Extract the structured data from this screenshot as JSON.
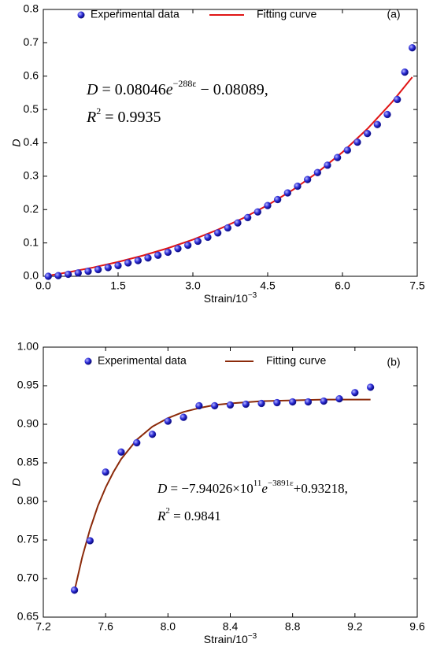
{
  "chart_data": [
    {
      "type": "scatter",
      "panel_label": "(a)",
      "x_label": [
        "Strain/10",
        "−3"
      ],
      "y_label": "D",
      "annotation": {
        "line1": [
          "D",
          " = 0.08046",
          "e",
          "−288ε",
          " − 0.08089,"
        ],
        "line2": [
          "R",
          "2",
          " = 0.9935"
        ]
      },
      "xlim": [
        0,
        7.5
      ],
      "ylim": [
        0,
        0.8
      ],
      "xticks": [
        {
          "value": 0,
          "label": "0.0"
        },
        1.5,
        {
          "value": 3,
          "label": "3.0"
        },
        4.5,
        {
          "value": 6,
          "label": "6.0"
        },
        7.5
      ],
      "yticks": [
        {
          "value": 0,
          "label": "0.0"
        },
        0.1,
        0.2,
        0.3,
        0.4,
        0.5,
        0.6,
        0.7,
        0.8
      ],
      "legend": "top",
      "series": [
        {
          "name": "Experimental data",
          "type": "scatter",
          "color": "#2a2ad6",
          "x": [
            0.1,
            0.3,
            0.5,
            0.7,
            0.9,
            1.1,
            1.3,
            1.5,
            1.7,
            1.9,
            2.1,
            2.3,
            2.5,
            2.7,
            2.9,
            3.1,
            3.3,
            3.5,
            3.7,
            3.9,
            4.1,
            4.3,
            4.5,
            4.7,
            4.9,
            5.1,
            5.3,
            5.5,
            5.7,
            5.9,
            6.1,
            6.3,
            6.5,
            6.7,
            6.9,
            7.1,
            7.25,
            7.4
          ],
          "values": [
            0.0,
            0.002,
            0.006,
            0.01,
            0.015,
            0.02,
            0.026,
            0.032,
            0.04,
            0.047,
            0.055,
            0.063,
            0.072,
            0.083,
            0.093,
            0.105,
            0.117,
            0.13,
            0.145,
            0.16,
            0.176,
            0.193,
            0.212,
            0.23,
            0.25,
            0.27,
            0.29,
            0.311,
            0.333,
            0.356,
            0.378,
            0.402,
            0.428,
            0.455,
            0.485,
            0.53,
            0.612,
            0.685
          ]
        },
        {
          "name": "Fitting curve",
          "type": "line",
          "color": "#e01515",
          "x": [
            0.1,
            0.5,
            1,
            1.5,
            2,
            2.5,
            3,
            3.5,
            4,
            4.5,
            5,
            5.5,
            6,
            6.5,
            7,
            7.4
          ],
          "values": [
            0.0019,
            0.012,
            0.0264,
            0.043,
            0.0622,
            0.0844,
            0.11,
            0.1396,
            0.1737,
            0.2132,
            0.2587,
            0.3113,
            0.3721,
            0.4422,
            0.5232,
            0.597
          ]
        }
      ]
    },
    {
      "type": "scatter",
      "panel_label": "(b)",
      "x_label": [
        "Strain/10",
        "−3"
      ],
      "y_label": "D",
      "annotation": {
        "line1": [
          "D",
          " = −7.94026×10",
          "11",
          "e",
          "−3891ε",
          "+0.93218,"
        ],
        "line2": [
          "R",
          "2",
          " = 0.9841"
        ]
      },
      "xlim": [
        7.2,
        9.6
      ],
      "ylim": [
        0.65,
        1.0
      ],
      "xticks": [
        7.2,
        7.6,
        {
          "value": 8,
          "label": "8.0"
        },
        8.4,
        8.8,
        9.2,
        9.6
      ],
      "yticks": [
        0.65,
        {
          "value": 0.7,
          "label": "0.70"
        },
        0.75,
        {
          "value": 0.8,
          "label": "0.80"
        },
        0.85,
        {
          "value": 0.9,
          "label": "0.90"
        },
        0.95,
        {
          "value": 1,
          "label": "1.00"
        }
      ],
      "legend": "top",
      "series": [
        {
          "name": "Experimental data",
          "type": "scatter",
          "color": "#2a2ad6",
          "x": [
            7.4,
            7.5,
            7.6,
            7.7,
            7.8,
            7.9,
            8.0,
            8.1,
            8.2,
            8.3,
            8.4,
            8.5,
            8.6,
            8.7,
            8.8,
            8.9,
            9.0,
            9.1,
            9.2,
            9.3
          ],
          "values": [
            0.685,
            0.749,
            0.838,
            0.864,
            0.876,
            0.887,
            0.904,
            0.909,
            0.924,
            0.924,
            0.925,
            0.926,
            0.927,
            0.928,
            0.929,
            0.929,
            0.93,
            0.933,
            0.941,
            0.948
          ]
        },
        {
          "name": "Fitting curve",
          "type": "line",
          "color": "#8b2a0a",
          "x": [
            7.4,
            7.45,
            7.5,
            7.55,
            7.6,
            7.65,
            7.7,
            7.8,
            7.9,
            8.0,
            8.1,
            8.2,
            8.3,
            8.4,
            8.6,
            8.8,
            9.0,
            9.3
          ],
          "values": [
            0.684,
            0.728,
            0.764,
            0.794,
            0.818,
            0.838,
            0.855,
            0.88,
            0.897,
            0.908,
            0.916,
            0.921,
            0.925,
            0.927,
            0.93,
            0.931,
            0.932,
            0.932
          ]
        }
      ]
    }
  ]
}
